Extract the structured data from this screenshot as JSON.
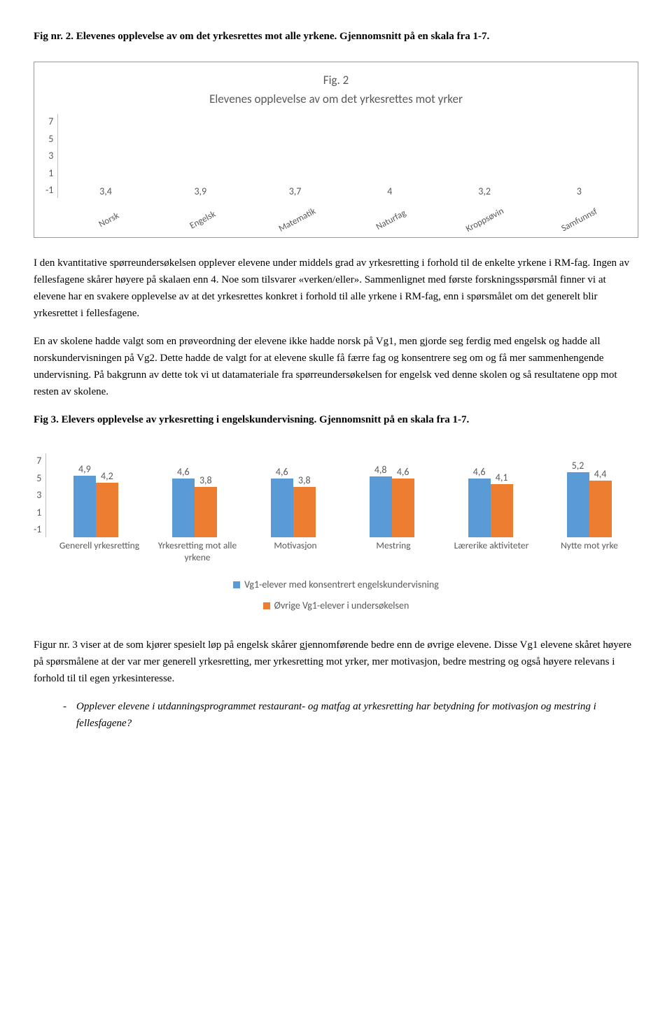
{
  "fig2_caption": "Fig nr. 2. Elevenes opplevelse av om det yrkesrettes mot alle yrkene. Gjennomsnitt på en skala fra 1-7.",
  "fig2_chart": {
    "type": "bar",
    "title": "Fig. 2\nElevenes opplevelse av om det yrkesrettes mot yrker",
    "y_ticks": [
      "7",
      "5",
      "3",
      "1",
      "-1"
    ],
    "y_min": -1,
    "y_max": 7,
    "baseline_value": -1,
    "bar_color": "#5b9bd5",
    "categories": [
      "Norsk",
      "Engelsk",
      "Matematik",
      "Naturfag",
      "Kroppsøvin",
      "Samfunnsf"
    ],
    "values": [
      3.4,
      3.9,
      3.7,
      4,
      3.2,
      3
    ],
    "value_labels": [
      "3,4",
      "3,9",
      "3,7",
      "4",
      "3,2",
      "3"
    ],
    "label_color": "#595959",
    "axis_color": "#bfbfbf",
    "rotated_x": true
  },
  "para1": "I den kvantitative spørreundersøkelsen opplever elevene under middels grad av yrkesretting i forhold til de enkelte yrkene i RM-fag. Ingen av fellesfagene skårer høyere på skalaen enn 4. Noe som tilsvarer «verken/eller». Sammenlignet med første forskningsspørsmål finner vi at elevene har en svakere opplevelse av at det yrkesrettes konkret i forhold til alle yrkene i RM-fag, enn i spørsmålet om det generelt blir yrkesrettet i fellesfagene.",
  "para2": "En av skolene hadde valgt som en prøveordning der elevene ikke hadde norsk på Vg1, men gjorde seg ferdig med engelsk og hadde all norskundervisningen på Vg2. Dette hadde de valgt for at elevene skulle få færre fag og konsentrere seg om og få mer sammenhengende undervisning. På bakgrunn av dette tok vi ut datamateriale fra spørreundersøkelsen for engelsk ved denne skolen og så resultatene opp mot resten av skolene.",
  "fig3_caption": "Fig 3. Elevers opplevelse av yrkesretting i engelskundervisning. Gjennomsnitt på en skala fra 1-7.",
  "fig3_chart": {
    "type": "grouped-bar",
    "y_ticks": [
      "7",
      "5",
      "3",
      "1",
      "-1"
    ],
    "y_min": -1,
    "y_max": 7,
    "series_colors": [
      "#5b9bd5",
      "#ed7d31"
    ],
    "categories": [
      "Generell yrkesretting",
      "Yrkesretting mot alle yrkene",
      "Motivasjon",
      "Mestring",
      "Lærerike aktiviteter",
      "Nytte mot yrke"
    ],
    "series1_values": [
      4.9,
      4.6,
      4.6,
      4.8,
      4.6,
      5.2
    ],
    "series2_values": [
      4.2,
      3.8,
      3.8,
      4.6,
      4.1,
      4.4
    ],
    "series1_labels": [
      "4,9",
      "4,6",
      "4,6",
      "4,8",
      "4,6",
      "5,2"
    ],
    "series2_labels": [
      "4,2",
      "3,8",
      "3,8",
      "4,6",
      "4,1",
      "4,4"
    ],
    "legend": [
      "Vg1-elever med konsentrert engelskundervisning",
      "Øvrige Vg1-elever i undersøkelsen"
    ],
    "label_color": "#595959",
    "axis_color": "#bfbfbf"
  },
  "para3": "Figur nr. 3 viser at de som kjører spesielt løp på engelsk skårer gjennomførende bedre enn de øvrige elevene. Disse Vg1 elevene skåret høyere på spørsmålene at der var mer generell yrkesretting, mer yrkesretting mot yrker, mer motivasjon, bedre mestring og også høyere relevans i forhold til til egen yrkesinteresse.",
  "bullet_text": "Opplever elevene i utdanningsprogrammet restaurant- og matfag at yrkesretting har betydning for motivasjon og mestring i fellesfagene?"
}
